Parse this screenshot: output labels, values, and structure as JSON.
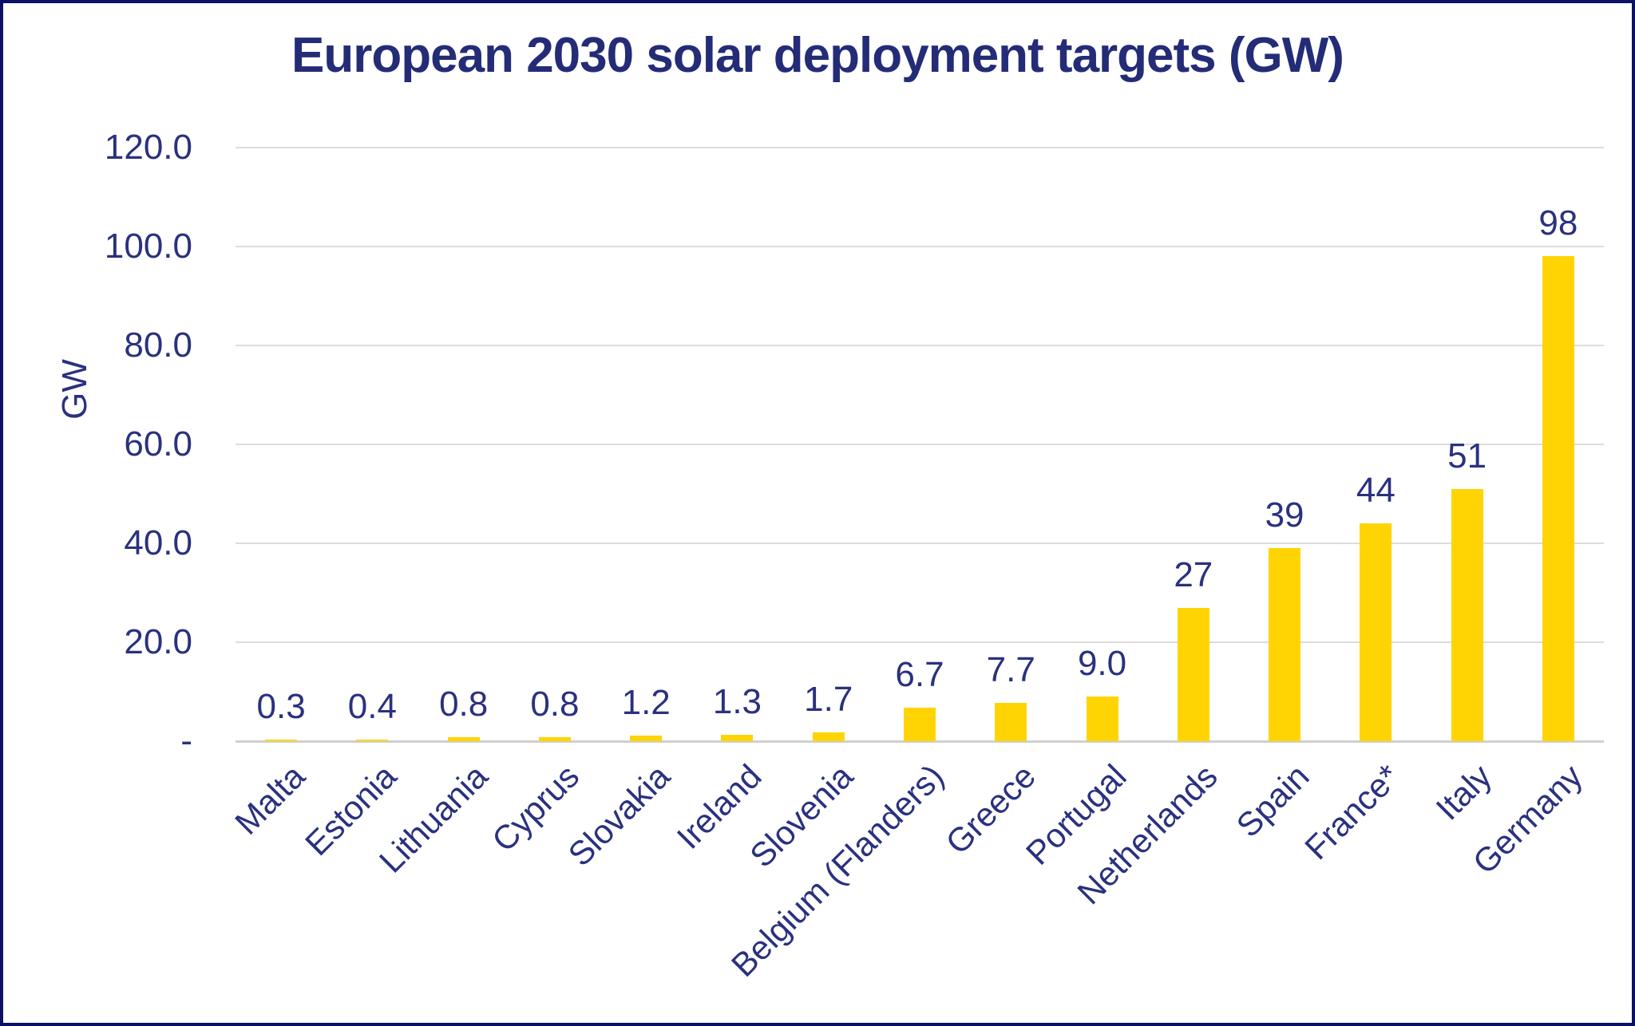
{
  "frame": {
    "background": "#ffffff",
    "border_color": "#0b1163"
  },
  "chart_data": {
    "type": "bar",
    "title": "European 2030 solar deployment targets (GW)",
    "xlabel": "",
    "ylabel": "GW",
    "ylim": [
      0,
      120
    ],
    "grid": true,
    "legend": "none",
    "bar_color": "#ffd402",
    "gridline_color": "#dcdcdc",
    "baseline_color": "#d0d0d0",
    "title_color": "#242c77",
    "text_color": "#2a317f",
    "yticks": [
      {
        "value": 120,
        "label": "120.0"
      },
      {
        "value": 100,
        "label": "100.0"
      },
      {
        "value": 80,
        "label": "80.0"
      },
      {
        "value": 60,
        "label": "60.0"
      },
      {
        "value": 40,
        "label": "40.0"
      },
      {
        "value": 20,
        "label": "20.0"
      },
      {
        "value": 0,
        "label": "-"
      }
    ],
    "categories": [
      "Malta",
      "Estonia",
      "Lithuania",
      "Cyprus",
      "Slovakia",
      "Ireland",
      "Slovenia",
      "Belgium (Flanders)",
      "Greece",
      "Portugal",
      "Netherlands",
      "Spain",
      "France*",
      "Italy",
      "Germany"
    ],
    "values": [
      0.3,
      0.4,
      0.8,
      0.8,
      1.2,
      1.3,
      1.7,
      6.7,
      7.7,
      9.0,
      27,
      39,
      44,
      51,
      98
    ],
    "value_labels": [
      "0.3",
      "0.4",
      "0.8",
      "0.8",
      "1.2",
      "1.3",
      "1.7",
      "6.7",
      "7.7",
      "9.0",
      "27",
      "39",
      "44",
      "51",
      "98"
    ]
  }
}
